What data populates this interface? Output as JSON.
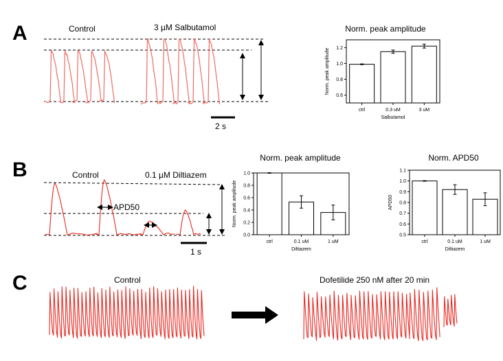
{
  "panels": {
    "a": {
      "letter": "A",
      "control_label": "Control",
      "drug_label": "3 µM Salbutamol",
      "scale_label": "2 s"
    },
    "b": {
      "letter": "B",
      "control_label": "Control",
      "drug_label": "0.1 µM Diltiazem",
      "apd_label": "APD50",
      "scale_label": "1 s"
    },
    "c": {
      "letter": "C",
      "control_label": "Control",
      "drug_label": "Dofetilide 250 nM after 20 min"
    }
  },
  "chart_data": [
    {
      "type": "bar",
      "title": "Norm. peak amplitude",
      "xlabel": "Salbutamol",
      "ylabel": "Norm. peak amplitude",
      "categories": [
        "ctrl",
        "0.3 uM",
        "3 uM"
      ],
      "values": [
        0.99,
        1.15,
        1.22
      ],
      "errors": [
        0.005,
        0.02,
        0.025
      ],
      "ylim": [
        0.5,
        1.3
      ],
      "yticks": [
        "0.6",
        "0.8",
        "1.0",
        "1.2"
      ],
      "ytick_values": [
        0.6,
        0.8,
        1.0,
        1.2
      ]
    },
    {
      "type": "bar",
      "title": "Norm. peak amplitude",
      "xlabel": "Diltiazem",
      "ylabel": "Norm. peak amplitude",
      "categories": [
        "ctrl",
        "0.1 uM",
        "1 uM"
      ],
      "values": [
        1.0,
        0.53,
        0.36
      ],
      "errors": [
        0.005,
        0.1,
        0.12
      ],
      "ylim": [
        0,
        1.0
      ],
      "yticks": [
        "0.0",
        "0.2",
        "0.4",
        "0.6",
        "0.8",
        "1.0"
      ],
      "ytick_values": [
        0,
        0.2,
        0.4,
        0.6,
        0.8,
        1.0
      ]
    },
    {
      "type": "bar",
      "title": "Norm. APD50",
      "xlabel": "Diltiazem",
      "ylabel": "APD50",
      "categories": [
        "ctrl",
        "0.1 uM",
        "1 uM"
      ],
      "values": [
        1.0,
        0.92,
        0.83
      ],
      "errors": [
        0.003,
        0.045,
        0.06
      ],
      "ylim": [
        0.5,
        1.1
      ],
      "yticks": [
        "0.5",
        "0.6",
        "0.7",
        "0.8",
        "0.9",
        "1.0",
        "1.1"
      ],
      "ytick_values": [
        0.5,
        0.6,
        0.7,
        0.8,
        0.9,
        1.0,
        1.1
      ]
    }
  ],
  "colors": {
    "trace": "#e8261f",
    "trace_light": "#ef6a62",
    "bar_fill": "#ffffff",
    "ink": "#000000"
  }
}
